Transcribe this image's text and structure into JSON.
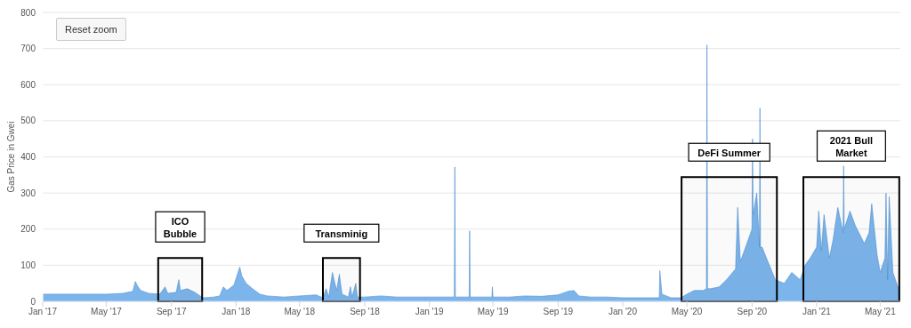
{
  "chart_data": {
    "type": "area",
    "ylabel": "Gas Price in Gwei",
    "color": "#7cb5ec",
    "grid": "y",
    "legend": false,
    "xlim": [
      "2017-01-01",
      "2021-06-08"
    ],
    "ylim": [
      0,
      800
    ],
    "yticks": [
      0,
      100,
      200,
      300,
      400,
      500,
      600,
      700,
      800
    ],
    "xticks": [
      {
        "value": "2017-01-01",
        "label": "Jan '17"
      },
      {
        "value": "2017-05-01",
        "label": "May '17"
      },
      {
        "value": "2017-09-01",
        "label": "Sep '17"
      },
      {
        "value": "2018-01-01",
        "label": "Jan '18"
      },
      {
        "value": "2018-05-01",
        "label": "May '18"
      },
      {
        "value": "2018-09-01",
        "label": "Sep '18"
      },
      {
        "value": "2019-01-01",
        "label": "Jan '19"
      },
      {
        "value": "2019-05-01",
        "label": "May '19"
      },
      {
        "value": "2019-09-01",
        "label": "Sep '19"
      },
      {
        "value": "2020-01-01",
        "label": "Jan '20"
      },
      {
        "value": "2020-05-01",
        "label": "May '20"
      },
      {
        "value": "2020-09-01",
        "label": "Sep '20"
      },
      {
        "value": "2021-01-01",
        "label": "Jan '21"
      },
      {
        "value": "2021-05-01",
        "label": "May '21"
      }
    ],
    "x": [
      "2017-01-01",
      "2017-02-01",
      "2017-03-01",
      "2017-04-01",
      "2017-05-01",
      "2017-06-01",
      "2017-06-20",
      "2017-06-25",
      "2017-06-28",
      "2017-07-05",
      "2017-07-20",
      "2017-08-10",
      "2017-08-20",
      "2017-08-25",
      "2017-09-10",
      "2017-09-15",
      "2017-09-18",
      "2017-10-01",
      "2017-10-15",
      "2017-10-25",
      "2017-11-01",
      "2017-11-20",
      "2017-12-01",
      "2017-12-08",
      "2017-12-15",
      "2017-12-28",
      "2018-01-08",
      "2018-01-12",
      "2018-01-20",
      "2018-02-01",
      "2018-02-15",
      "2018-03-01",
      "2018-04-01",
      "2018-05-01",
      "2018-06-01",
      "2018-06-14",
      "2018-06-20",
      "2018-06-25",
      "2018-07-02",
      "2018-07-05",
      "2018-07-10",
      "2018-07-15",
      "2018-07-20",
      "2018-08-01",
      "2018-08-05",
      "2018-08-08",
      "2018-08-15",
      "2018-08-18",
      "2018-09-01",
      "2018-10-01",
      "2018-11-01",
      "2018-12-01",
      "2019-01-01",
      "2019-02-01",
      "2019-02-17",
      "2019-02-18",
      "2019-02-19",
      "2019-03-17",
      "2019-03-18",
      "2019-03-19",
      "2019-04-29",
      "2019-04-30",
      "2019-05-01",
      "2019-06-01",
      "2019-07-01",
      "2019-08-01",
      "2019-09-01",
      "2019-09-20",
      "2019-10-01",
      "2019-10-10",
      "2019-11-01",
      "2019-12-01",
      "2020-01-01",
      "2020-02-01",
      "2020-03-01",
      "2020-03-10",
      "2020-03-11",
      "2020-03-15",
      "2020-04-01",
      "2020-04-20",
      "2020-05-01",
      "2020-05-15",
      "2020-06-01",
      "2020-06-07",
      "2020-06-08",
      "2020-06-09",
      "2020-06-15",
      "2020-07-01",
      "2020-07-15",
      "2020-08-01",
      "2020-08-05",
      "2020-08-10",
      "2020-08-20",
      "2020-09-01",
      "2020-09-02",
      "2020-09-03",
      "2020-09-10",
      "2020-09-15",
      "2020-09-16",
      "2020-09-17",
      "2020-09-20",
      "2020-10-01",
      "2020-10-15",
      "2020-11-01",
      "2020-11-15",
      "2020-12-01",
      "2020-12-10",
      "2020-12-20",
      "2021-01-01",
      "2021-01-05",
      "2021-01-10",
      "2021-01-15",
      "2021-01-25",
      "2021-02-01",
      "2021-02-10",
      "2021-02-20",
      "2021-02-21",
      "2021-02-22",
      "2021-03-05",
      "2021-03-15",
      "2021-04-01",
      "2021-04-10",
      "2021-04-15",
      "2021-04-25",
      "2021-05-01",
      "2021-05-10",
      "2021-05-12",
      "2021-05-15",
      "2021-05-18",
      "2021-05-25",
      "2021-06-01",
      "2021-06-07"
    ],
    "values": [
      20,
      20,
      20,
      20,
      20,
      22,
      28,
      55,
      45,
      30,
      22,
      20,
      40,
      22,
      25,
      60,
      30,
      35,
      25,
      15,
      10,
      12,
      15,
      40,
      30,
      45,
      95,
      70,
      50,
      35,
      20,
      15,
      12,
      15,
      18,
      10,
      35,
      12,
      80,
      60,
      30,
      75,
      20,
      12,
      40,
      12,
      50,
      12,
      12,
      15,
      12,
      12,
      12,
      12,
      12,
      372,
      12,
      12,
      195,
      12,
      12,
      40,
      12,
      12,
      15,
      14,
      18,
      28,
      30,
      15,
      12,
      12,
      10,
      10,
      10,
      10,
      85,
      20,
      10,
      10,
      20,
      30,
      30,
      35,
      710,
      35,
      35,
      40,
      60,
      90,
      260,
      110,
      150,
      200,
      450,
      240,
      300,
      150,
      535,
      150,
      150,
      110,
      60,
      50,
      80,
      60,
      100,
      120,
      150,
      250,
      140,
      240,
      120,
      170,
      260,
      190,
      375,
      200,
      250,
      210,
      160,
      190,
      270,
      130,
      80,
      120,
      300,
      60,
      290,
      80,
      50,
      25
    ],
    "bands": [
      {
        "axis": "x",
        "from": "2017-08-07",
        "to": "2017-10-29",
        "label": "ICO\nBubble"
      },
      {
        "axis": "x",
        "from": "2018-06-14",
        "to": "2018-08-23",
        "label": "Transminig"
      },
      {
        "axis": "x",
        "from": "2020-04-21",
        "to": "2020-10-18",
        "label": "DeFi Summer"
      },
      {
        "axis": "x",
        "from": "2020-12-07",
        "to": "2021-06-06",
        "label": "2021 Bull\nMarket"
      }
    ],
    "annotations": [
      "Reset zoom"
    ]
  }
}
